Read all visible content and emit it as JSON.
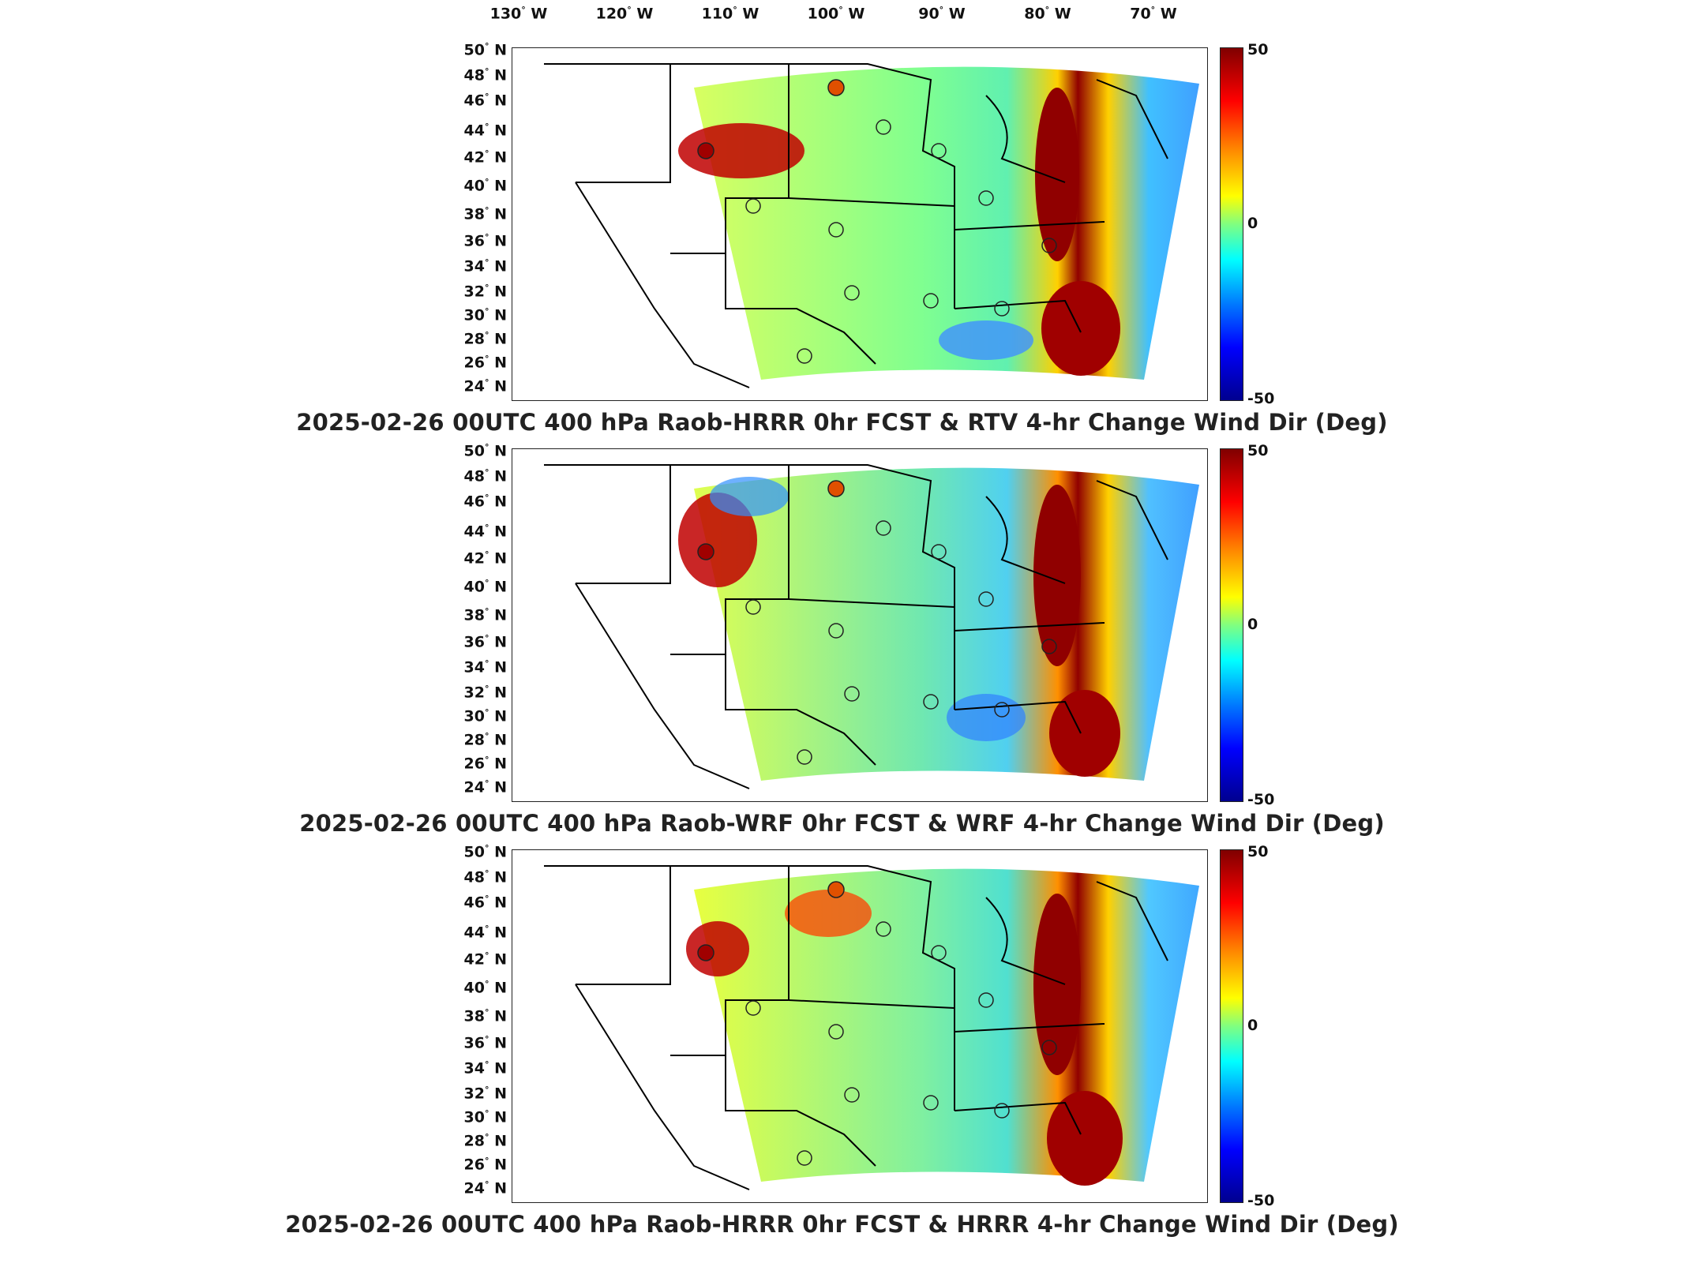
{
  "longitude_labels": [
    {
      "deg": "130",
      "dir": "W"
    },
    {
      "deg": "120",
      "dir": "W"
    },
    {
      "deg": "110",
      "dir": "W"
    },
    {
      "deg": "100",
      "dir": "W"
    },
    {
      "deg": "90",
      "dir": "W"
    },
    {
      "deg": "80",
      "dir": "W"
    },
    {
      "deg": "70",
      "dir": "W"
    }
  ],
  "latitude_labels": [
    {
      "deg": "50",
      "dir": "N"
    },
    {
      "deg": "48",
      "dir": "N"
    },
    {
      "deg": "46",
      "dir": "N"
    },
    {
      "deg": "44",
      "dir": "N"
    },
    {
      "deg": "42",
      "dir": "N"
    },
    {
      "deg": "40",
      "dir": "N"
    },
    {
      "deg": "38",
      "dir": "N"
    },
    {
      "deg": "36",
      "dir": "N"
    },
    {
      "deg": "34",
      "dir": "N"
    },
    {
      "deg": "32",
      "dir": "N"
    },
    {
      "deg": "30",
      "dir": "N"
    },
    {
      "deg": "28",
      "dir": "N"
    },
    {
      "deg": "26",
      "dir": "N"
    },
    {
      "deg": "24",
      "dir": "N"
    }
  ],
  "colorbar": {
    "max": "50",
    "mid": "0",
    "min": "-50"
  },
  "panels": [
    {
      "title": "2025-02-26 00UTC 400 hPa Raob-HRRR 0hr FCST & RTV 4-hr Change Wind Dir (Deg)"
    },
    {
      "title": "2025-02-26 00UTC 400 hPa Raob-WRF 0hr FCST & WRF 4-hr Change Wind Dir (Deg)"
    },
    {
      "title": "2025-02-26 00UTC 400 hPa Raob-HRRR 0hr FCST & HRRR 4-hr Change Wind Dir (Deg)"
    }
  ],
  "colors": {
    "extreme_positive": "#800000",
    "neutral": "#80ff80",
    "extreme_negative": "#00008f"
  }
}
